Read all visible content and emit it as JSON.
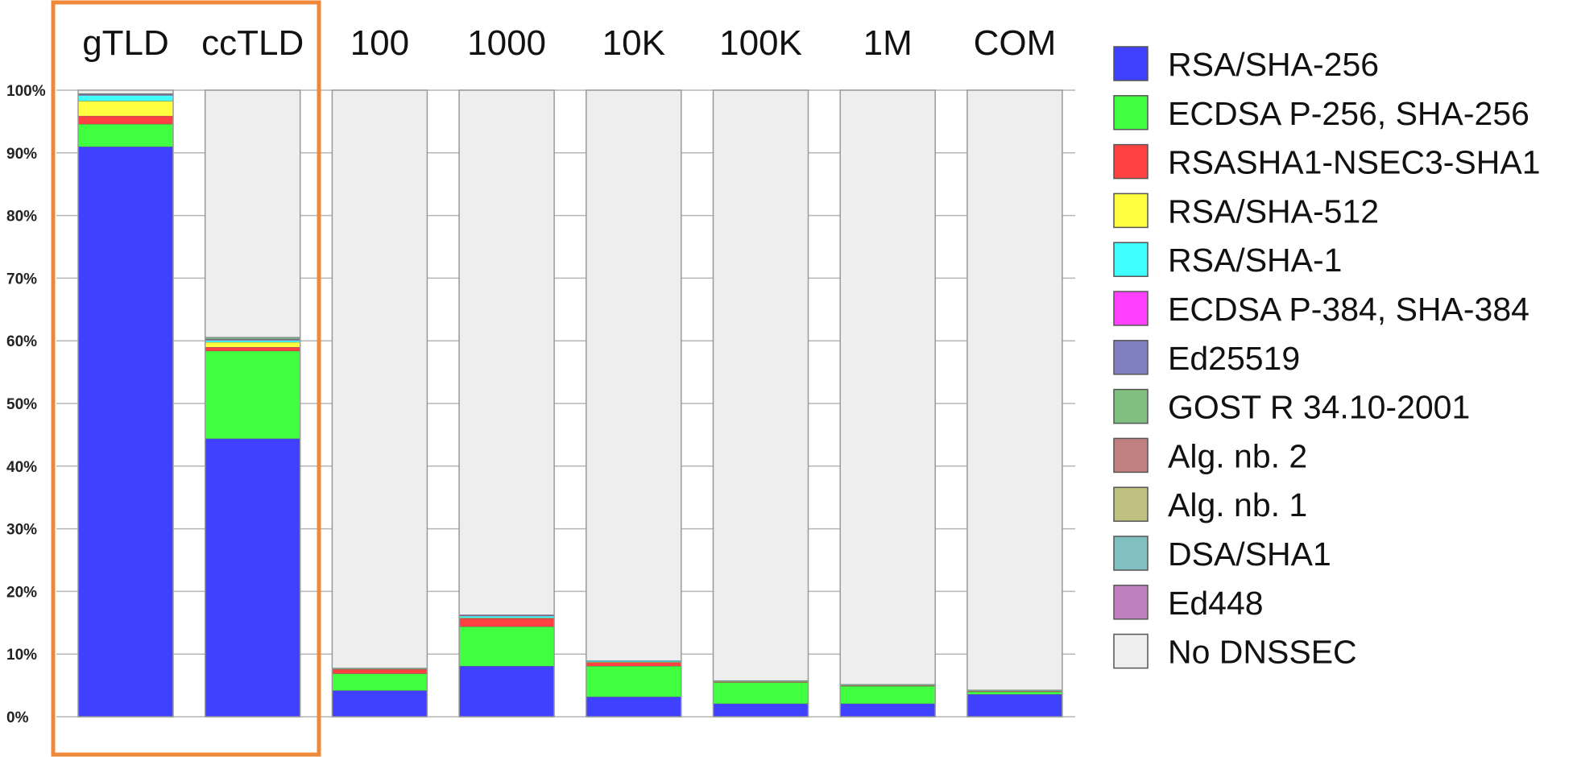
{
  "chart_data": {
    "type": "bar",
    "stacked": true,
    "categories": [
      "gTLD",
      "ccTLD",
      "100",
      "1000",
      "10K",
      "100K",
      "1M",
      "COM"
    ],
    "yticks": [
      "0%",
      "10%",
      "20%",
      "30%",
      "40%",
      "50%",
      "60%",
      "70%",
      "80%",
      "90%",
      "100%"
    ],
    "ylim": [
      0,
      100
    ],
    "grid": true,
    "legend_position": "right",
    "highlight": {
      "categories": [
        "gTLD",
        "ccTLD"
      ],
      "color": "#f0883a"
    },
    "series": [
      {
        "name": "RSA/SHA-256",
        "color": "#4040ff",
        "values": [
          91.0,
          44.4,
          4.2,
          8.1,
          3.2,
          2.1,
          2.1,
          3.6
        ]
      },
      {
        "name": "ECDSA P-256, SHA-256",
        "color": "#40ff40",
        "values": [
          3.6,
          14.0,
          2.7,
          6.3,
          4.9,
          3.4,
          2.8,
          0.4
        ]
      },
      {
        "name": "RSASHA1-NSEC3-SHA1",
        "color": "#ff4040",
        "values": [
          1.3,
          0.6,
          0.7,
          1.3,
          0.6,
          0.1,
          0.1,
          0.1
        ]
      },
      {
        "name": "RSA/SHA-512",
        "color": "#ffff40",
        "values": [
          2.4,
          0.8,
          0.1,
          0.1,
          0.1,
          0.1,
          0.1,
          0.1
        ]
      },
      {
        "name": "RSA/SHA-1",
        "color": "#40ffff",
        "values": [
          0.9,
          0.3,
          0.1,
          0.3,
          0.2,
          0.1,
          0.1,
          0.1
        ]
      },
      {
        "name": "ECDSA P-384, SHA-384",
        "color": "#ff40ff",
        "values": [
          0.1,
          0.1,
          0.0,
          0.1,
          0.0,
          0.0,
          0.0,
          0.0
        ]
      },
      {
        "name": "Ed25519",
        "color": "#8080c0",
        "values": [
          0.1,
          0.1,
          0.0,
          0.1,
          0.0,
          0.0,
          0.0,
          0.0
        ]
      },
      {
        "name": "GOST R 34.10-2001",
        "color": "#80c080",
        "values": [
          0.0,
          0.2,
          0.0,
          0.0,
          0.0,
          0.0,
          0.0,
          0.0
        ]
      },
      {
        "name": "Alg. nb. 2",
        "color": "#c08080",
        "values": [
          0.0,
          0.0,
          0.0,
          0.0,
          0.0,
          0.0,
          0.0,
          0.0
        ]
      },
      {
        "name": "Alg. nb. 1",
        "color": "#c0c080",
        "values": [
          0.0,
          0.0,
          0.0,
          0.0,
          0.0,
          0.0,
          0.0,
          0.0
        ]
      },
      {
        "name": "DSA/SHA1",
        "color": "#80c0c0",
        "values": [
          0.1,
          0.1,
          0.0,
          0.0,
          0.0,
          0.0,
          0.0,
          0.0
        ]
      },
      {
        "name": "Ed448",
        "color": "#c080c0",
        "values": [
          0.0,
          0.0,
          0.0,
          0.0,
          0.0,
          0.0,
          0.0,
          0.0
        ]
      },
      {
        "name": "No DNSSEC",
        "color": "#eeeeee",
        "values": [
          0.5,
          39.4,
          92.2,
          83.7,
          91.0,
          94.2,
          94.8,
          95.7
        ]
      }
    ]
  }
}
